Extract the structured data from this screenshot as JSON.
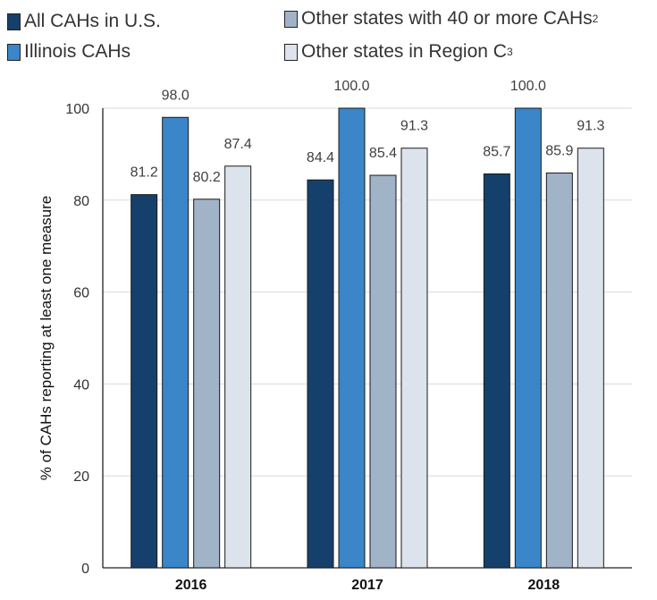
{
  "chart_data": {
    "type": "bar",
    "categories": [
      "2016",
      "2017",
      "2018"
    ],
    "series": [
      {
        "name": "All CAHs in U.S.",
        "values": [
          81.2,
          84.4,
          85.7
        ],
        "labels": [
          "81.2",
          "84.4",
          "85.7"
        ],
        "color": "#15406c"
      },
      {
        "name": "Illinois CAHs",
        "values": [
          98.0,
          100.0,
          100.0
        ],
        "labels": [
          "98.0",
          "100.0",
          "100.0"
        ],
        "color": "#3a86c8"
      },
      {
        "name": "Other states with 40 or more CAHs",
        "sup": "2",
        "values": [
          80.2,
          85.4,
          85.9
        ],
        "labels": [
          "80.2",
          "85.4",
          "85.9"
        ],
        "color": "#a1b3c7"
      },
      {
        "name": "Other states in Region C",
        "sup": "3",
        "values": [
          87.4,
          91.3,
          91.3
        ],
        "labels": [
          "87.4",
          "91.3",
          "91.3"
        ],
        "color": "#dde3ec"
      }
    ],
    "ylabel": "% of CAHs reporting at least one measure",
    "xlabel": "",
    "ylim": [
      0,
      100
    ],
    "yticks": [
      0,
      20,
      40,
      60,
      80,
      100
    ],
    "grid": true,
    "legend_position": "top"
  }
}
